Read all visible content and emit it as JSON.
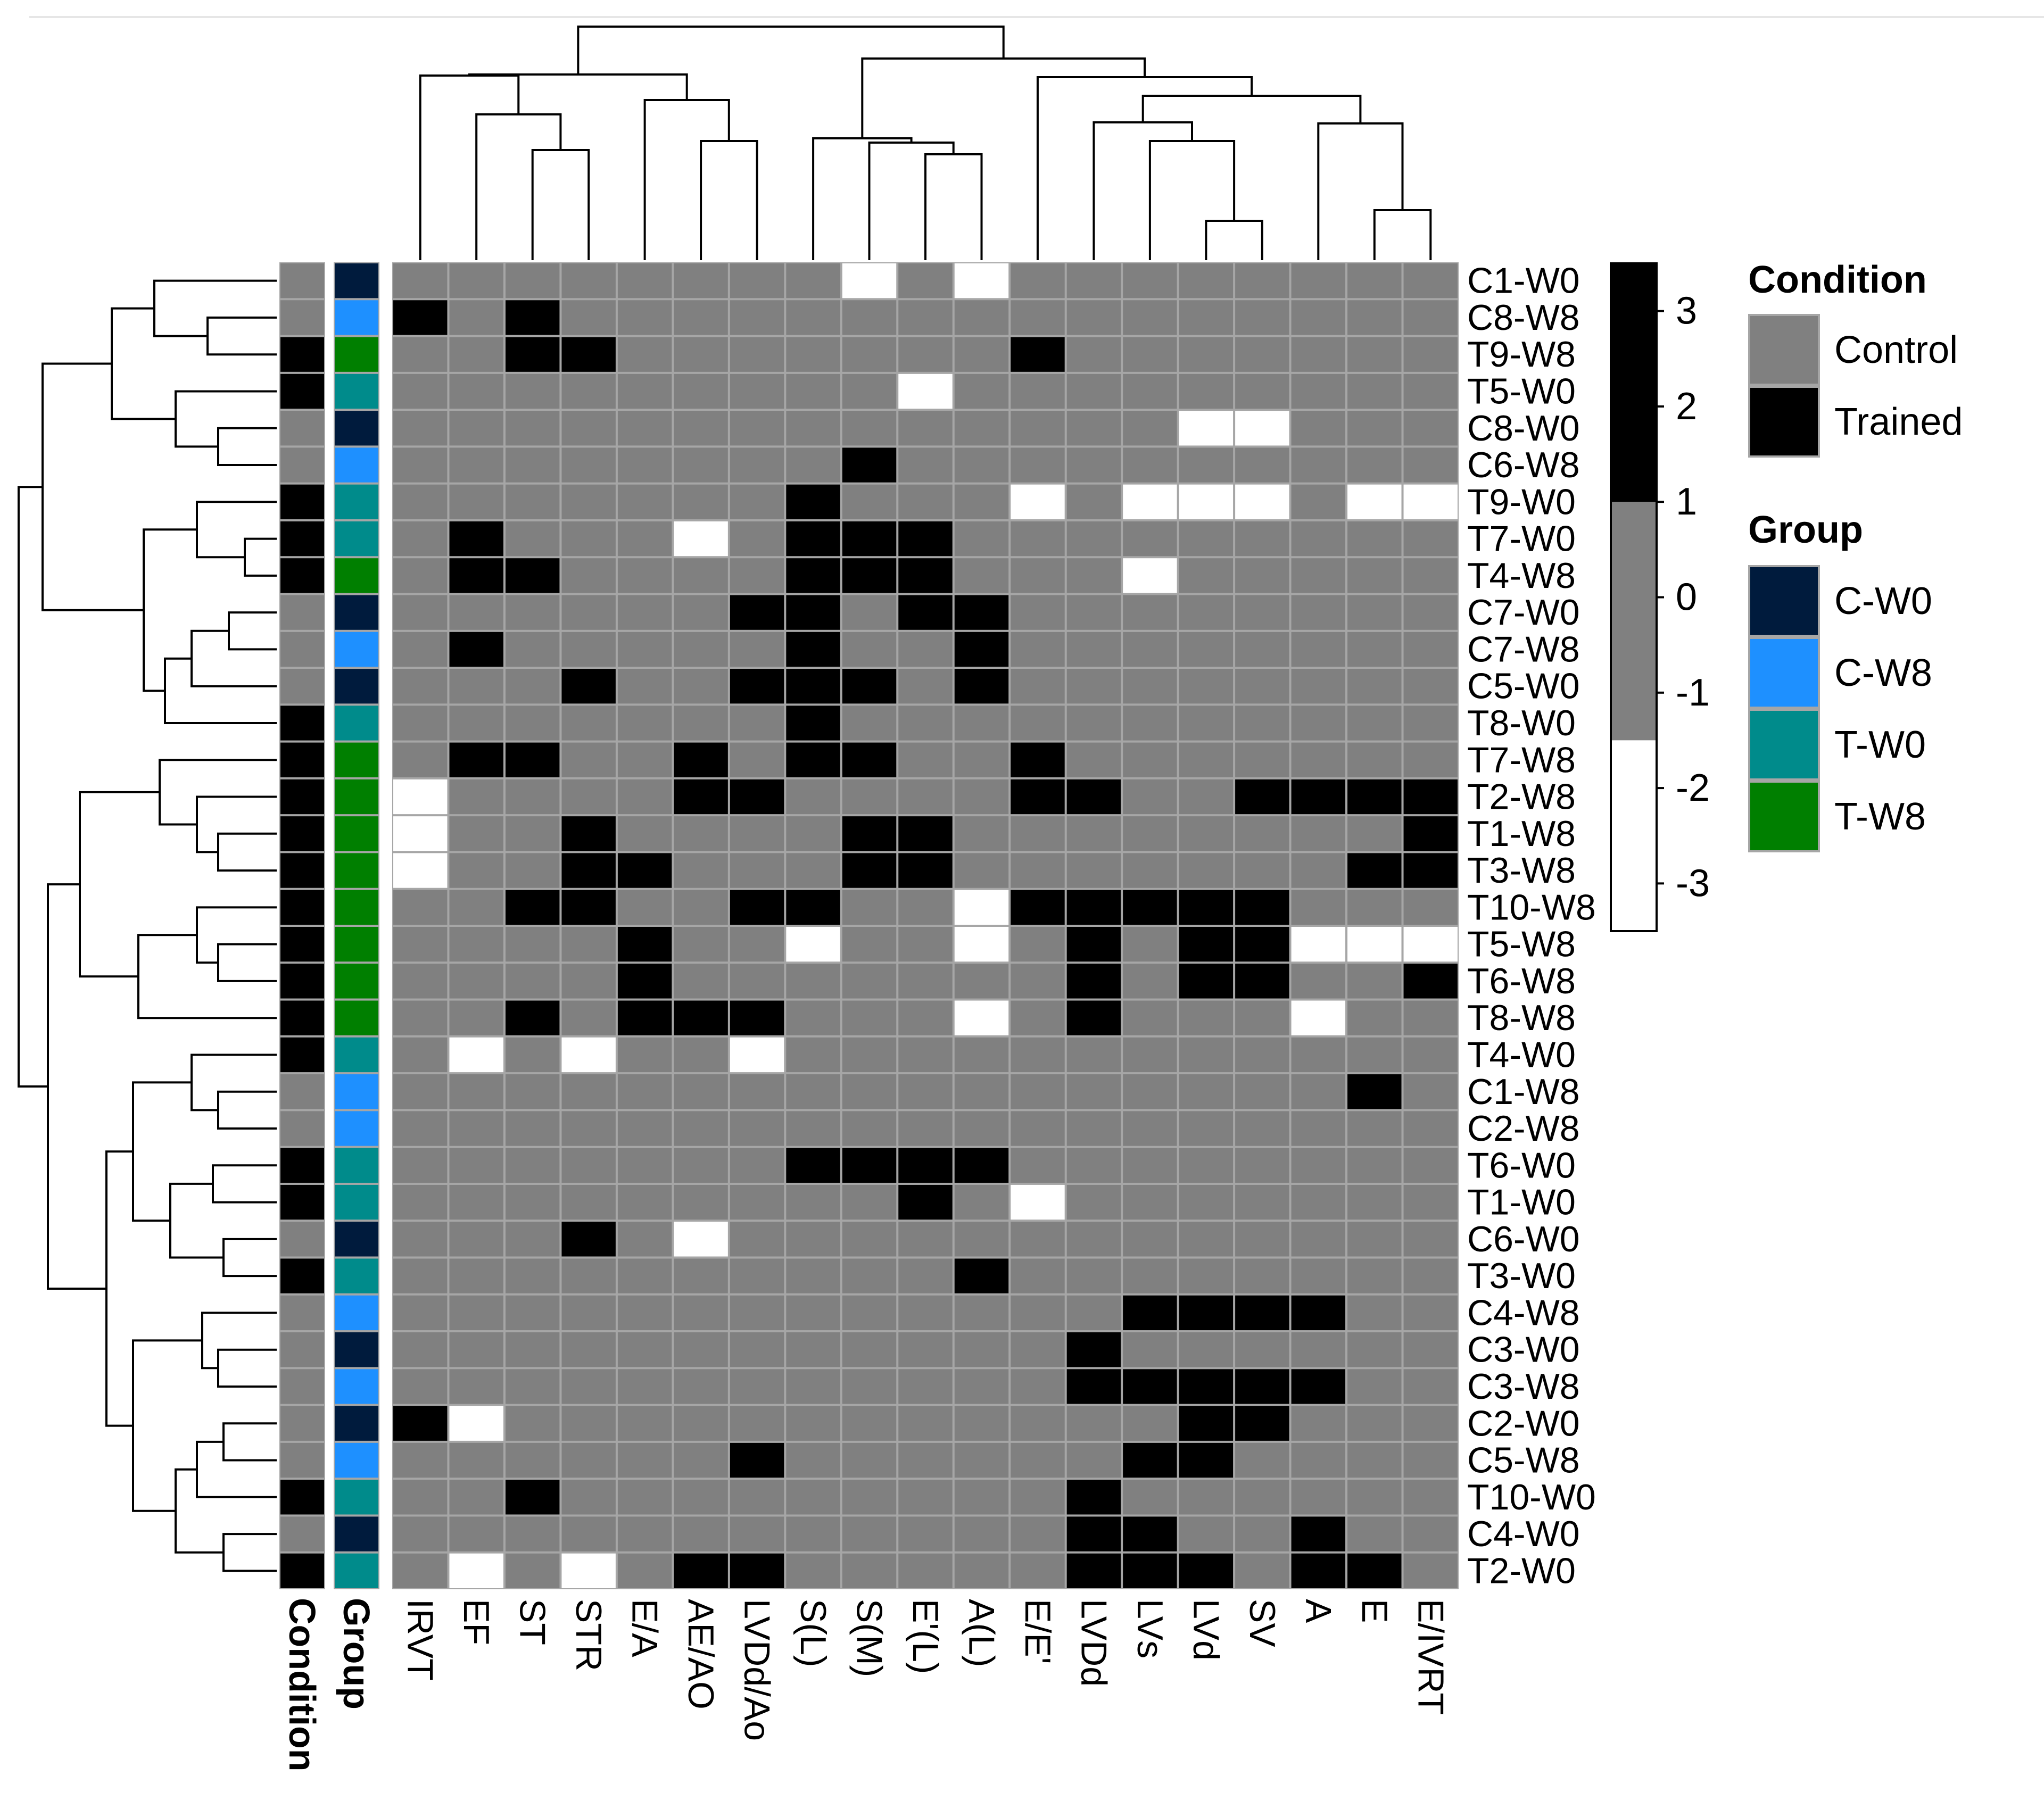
{
  "chart_data": {
    "type": "heatmap",
    "title": "",
    "rows": [
      "C1-W0",
      "C8-W8",
      "T9-W8",
      "T5-W0",
      "C8-W0",
      "C6-W8",
      "T9-W0",
      "T7-W0",
      "T4-W8",
      "C7-W0",
      "C7-W8",
      "C5-W0",
      "T8-W0",
      "T7-W8",
      "T2-W8",
      "T1-W8",
      "T3-W8",
      "T10-W8",
      "T5-W8",
      "T6-W8",
      "T8-W8",
      "T4-W0",
      "C1-W8",
      "C2-W8",
      "T6-W0",
      "T1-W0",
      "C6-W0",
      "T3-W0",
      "C4-W8",
      "C3-W0",
      "C3-W8",
      "C2-W0",
      "C5-W8",
      "T10-W0",
      "C4-W0",
      "T2-W0"
    ],
    "columns": [
      "IRVT",
      "EF",
      "ST",
      "STR",
      "E/A",
      "AE/AO",
      "LVDd/Ao",
      "S(L)",
      "S(M)",
      "E'(L)",
      "A(L)",
      "E/E'",
      "LVDd",
      "LVs",
      "LVd",
      "SV",
      "A",
      "E",
      "E/IVRT"
    ],
    "values": [
      [
        0,
        0,
        0,
        0,
        0,
        0,
        0,
        0,
        -2,
        0,
        -2,
        0,
        0,
        0,
        0,
        0,
        0,
        0,
        0
      ],
      [
        2,
        0,
        2,
        0,
        0,
        0,
        0,
        0,
        0,
        0,
        0,
        0,
        0,
        0,
        0,
        0,
        0,
        0,
        0
      ],
      [
        0,
        0,
        2,
        2,
        0,
        0,
        0,
        0,
        0,
        0,
        0,
        2,
        0,
        0,
        0,
        0,
        0,
        0,
        0
      ],
      [
        0,
        0,
        0,
        0,
        0,
        0,
        0,
        0,
        0,
        -2,
        0,
        0,
        0,
        0,
        0,
        0,
        0,
        0,
        0
      ],
      [
        0,
        0,
        0,
        0,
        0,
        0,
        0,
        0,
        0,
        0,
        0,
        0,
        0,
        0,
        -2,
        -2,
        0,
        0,
        0
      ],
      [
        0,
        0,
        0,
        0,
        0,
        0,
        0,
        0,
        2,
        0,
        0,
        0,
        0,
        0,
        0,
        0,
        0,
        0,
        0
      ],
      [
        0,
        0,
        0,
        0,
        0,
        0,
        0,
        2,
        0,
        0,
        0,
        -2,
        0,
        -2,
        -2,
        -2,
        0,
        -2,
        -2
      ],
      [
        0,
        2,
        0,
        0,
        0,
        -2,
        0,
        2,
        2,
        2,
        0,
        0,
        0,
        0,
        0,
        0,
        0,
        0,
        0
      ],
      [
        0,
        2,
        2,
        0,
        0,
        0,
        0,
        2,
        2,
        2,
        0,
        0,
        0,
        -2,
        0,
        0,
        0,
        0,
        0
      ],
      [
        0,
        0,
        0,
        0,
        0,
        0,
        2,
        2,
        0,
        2,
        2,
        0,
        0,
        0,
        0,
        0,
        0,
        0,
        0
      ],
      [
        0,
        2,
        0,
        0,
        0,
        0,
        0,
        2,
        0,
        0,
        2,
        0,
        0,
        0,
        0,
        0,
        0,
        0,
        0
      ],
      [
        0,
        0,
        0,
        2,
        0,
        0,
        2,
        2,
        2,
        0,
        2,
        0,
        0,
        0,
        0,
        0,
        0,
        0,
        0
      ],
      [
        0,
        0,
        0,
        0,
        0,
        0,
        0,
        2,
        0,
        0,
        0,
        0,
        0,
        0,
        0,
        0,
        0,
        0,
        0
      ],
      [
        0,
        2,
        2,
        0,
        0,
        2,
        0,
        2,
        2,
        0,
        0,
        2,
        0,
        0,
        0,
        0,
        0,
        0,
        0
      ],
      [
        -2,
        0,
        0,
        0,
        0,
        2,
        2,
        0,
        0,
        0,
        0,
        2,
        2,
        0,
        0,
        2,
        2,
        2,
        2
      ],
      [
        -2,
        0,
        0,
        2,
        0,
        0,
        0,
        0,
        2,
        2,
        0,
        0,
        0,
        0,
        0,
        0,
        0,
        0,
        2
      ],
      [
        -2,
        0,
        0,
        2,
        2,
        0,
        0,
        0,
        2,
        2,
        0,
        0,
        0,
        0,
        0,
        0,
        0,
        2,
        2
      ],
      [
        0,
        0,
        2,
        2,
        0,
        0,
        2,
        2,
        0,
        0,
        -2,
        2,
        2,
        2,
        2,
        2,
        0,
        0,
        0
      ],
      [
        0,
        0,
        0,
        0,
        2,
        0,
        0,
        -2,
        0,
        0,
        -2,
        0,
        2,
        0,
        2,
        2,
        -2,
        -2,
        -2
      ],
      [
        0,
        0,
        0,
        0,
        2,
        0,
        0,
        0,
        0,
        0,
        0,
        0,
        2,
        0,
        2,
        2,
        0,
        0,
        2
      ],
      [
        0,
        0,
        2,
        0,
        2,
        2,
        2,
        0,
        0,
        0,
        -2,
        0,
        2,
        0,
        0,
        0,
        -2,
        0,
        0
      ],
      [
        0,
        -2,
        0,
        -2,
        0,
        0,
        -2,
        0,
        0,
        0,
        0,
        0,
        0,
        0,
        0,
        0,
        0,
        0,
        0
      ],
      [
        0,
        0,
        0,
        0,
        0,
        0,
        0,
        0,
        0,
        0,
        0,
        0,
        0,
        0,
        0,
        0,
        0,
        2,
        0
      ],
      [
        0,
        0,
        0,
        0,
        0,
        0,
        0,
        0,
        0,
        0,
        0,
        0,
        0,
        0,
        0,
        0,
        0,
        0,
        0
      ],
      [
        0,
        0,
        0,
        0,
        0,
        0,
        0,
        2,
        2,
        2,
        2,
        0,
        0,
        0,
        0,
        0,
        0,
        0,
        0
      ],
      [
        0,
        0,
        0,
        0,
        0,
        0,
        0,
        0,
        0,
        2,
        0,
        -2,
        0,
        0,
        0,
        0,
        0,
        0,
        0
      ],
      [
        0,
        0,
        0,
        2,
        0,
        -2,
        0,
        0,
        0,
        0,
        0,
        0,
        0,
        0,
        0,
        0,
        0,
        0,
        0
      ],
      [
        0,
        0,
        0,
        0,
        0,
        0,
        0,
        0,
        0,
        0,
        2,
        0,
        0,
        0,
        0,
        0,
        0,
        0,
        0
      ],
      [
        0,
        0,
        0,
        0,
        0,
        0,
        0,
        0,
        0,
        0,
        0,
        0,
        0,
        2,
        2,
        2,
        2,
        0,
        0
      ],
      [
        0,
        0,
        0,
        0,
        0,
        0,
        0,
        0,
        0,
        0,
        0,
        0,
        2,
        0,
        0,
        0,
        0,
        0,
        0
      ],
      [
        0,
        0,
        0,
        0,
        0,
        0,
        0,
        0,
        0,
        0,
        0,
        0,
        2,
        2,
        2,
        2,
        2,
        0,
        0
      ],
      [
        2,
        -2,
        0,
        0,
        0,
        0,
        0,
        0,
        0,
        0,
        0,
        0,
        0,
        0,
        2,
        2,
        0,
        0,
        0
      ],
      [
        0,
        0,
        0,
        0,
        0,
        0,
        2,
        0,
        0,
        0,
        0,
        0,
        0,
        2,
        2,
        0,
        0,
        0,
        0
      ],
      [
        0,
        0,
        2,
        0,
        0,
        0,
        0,
        0,
        0,
        0,
        0,
        0,
        2,
        0,
        0,
        0,
        0,
        0,
        0
      ],
      [
        0,
        0,
        0,
        0,
        0,
        0,
        0,
        0,
        0,
        0,
        0,
        0,
        2,
        2,
        0,
        0,
        2,
        0,
        0
      ],
      [
        0,
        -2,
        0,
        -2,
        0,
        2,
        2,
        0,
        0,
        0,
        0,
        0,
        2,
        2,
        2,
        0,
        2,
        2,
        0
      ]
    ],
    "row_annotations": {
      "condition": [
        "Control",
        "Control",
        "Trained",
        "Trained",
        "Control",
        "Control",
        "Trained",
        "Trained",
        "Trained",
        "Control",
        "Control",
        "Control",
        "Trained",
        "Trained",
        "Trained",
        "Trained",
        "Trained",
        "Trained",
        "Trained",
        "Trained",
        "Trained",
        "Trained",
        "Control",
        "Control",
        "Trained",
        "Trained",
        "Control",
        "Trained",
        "Control",
        "Control",
        "Control",
        "Control",
        "Control",
        "Trained",
        "Control",
        "Trained"
      ],
      "group": [
        "C-W0",
        "C-W8",
        "T-W8",
        "T-W0",
        "C-W0",
        "C-W8",
        "T-W0",
        "T-W0",
        "T-W8",
        "C-W0",
        "C-W8",
        "C-W0",
        "T-W0",
        "T-W8",
        "T-W8",
        "T-W8",
        "T-W8",
        "T-W8",
        "T-W8",
        "T-W8",
        "T-W8",
        "T-W0",
        "C-W8",
        "C-W8",
        "T-W0",
        "T-W0",
        "C-W0",
        "T-W0",
        "C-W8",
        "C-W0",
        "C-W8",
        "C-W0",
        "C-W8",
        "T-W0",
        "C-W0",
        "T-W0"
      ]
    },
    "annotation_titles": {
      "condition": "Condition",
      "group": "Group"
    },
    "colorbar": {
      "ticks": [
        "3",
        "2",
        "1",
        "0",
        "-1",
        "-2",
        "-3"
      ],
      "bins": [
        {
          "from": 1,
          "to": 3.5,
          "color": "#000000"
        },
        {
          "from": -1.5,
          "to": 1,
          "color": "#808080"
        },
        {
          "from": -3.5,
          "to": -1.5,
          "color": "#ffffff"
        }
      ],
      "range": [
        -3.5,
        3.5
      ]
    },
    "legend": {
      "condition": {
        "title": "Condition",
        "entries": [
          {
            "label": "Control",
            "color": "#808080"
          },
          {
            "label": "Trained",
            "color": "#000000"
          }
        ]
      },
      "group": {
        "title": "Group",
        "entries": [
          {
            "label": "C-W0",
            "color": "#001b3d"
          },
          {
            "label": "C-W8",
            "color": "#1e90ff"
          },
          {
            "label": "T-W0",
            "color": "#008b8b"
          },
          {
            "label": "T-W8",
            "color": "#007f00"
          }
        ]
      }
    }
  },
  "colors": {
    "high": "#000000",
    "mid": "#808080",
    "low": "#ffffff",
    "grid": "#a6a6a6"
  }
}
